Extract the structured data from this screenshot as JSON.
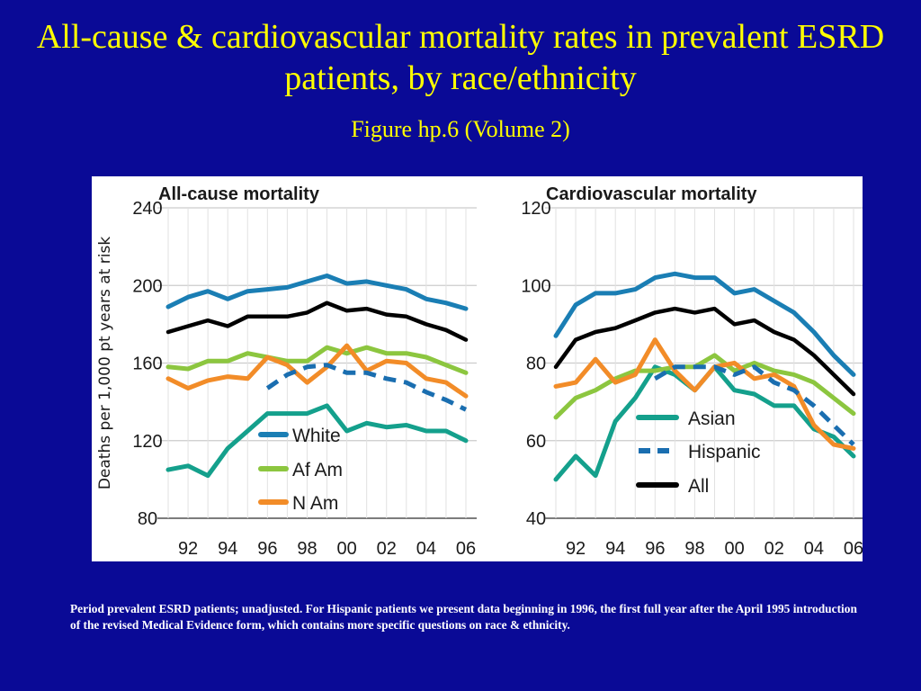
{
  "slide": {
    "title": "All-cause & cardiovascular mortality rates in prevalent ESRD patients, by race/ethnicity",
    "subtitle": "Figure hp.6 (Volume 2)",
    "footnote": "Period prevalent ESRD patients; unadjusted. For Hispanic patients we present data beginning in 1996, the first full year after the April 1995 introduction of the revised Medical Evidence form, which contains more specific questions on race & ethnicity."
  },
  "colors": {
    "background": "#0a0a96",
    "title": "#ffff00",
    "White": "#1a7eb4",
    "Af Am": "#8cc63f",
    "N Am": "#f28c28",
    "Asian": "#14a08c",
    "Hispanic": "#1a6eb0",
    "All": "#000000"
  },
  "chart_data": [
    {
      "type": "line",
      "title": "All-cause mortality",
      "ylabel": "Deaths per 1,000 pt years at risk",
      "xlabel": "",
      "x": [
        1991,
        1992,
        1993,
        1994,
        1995,
        1996,
        1997,
        1998,
        1999,
        2000,
        2001,
        2002,
        2003,
        2004,
        2005,
        2006
      ],
      "xticks": [
        1992,
        1994,
        1996,
        1998,
        2000,
        2002,
        2004,
        2006
      ],
      "xtick_labels": [
        "92",
        "94",
        "96",
        "98",
        "00",
        "02",
        "04",
        "06"
      ],
      "ylim": [
        80,
        240
      ],
      "yticks": [
        80,
        120,
        160,
        200,
        240
      ],
      "grid": true,
      "legend": [
        "White",
        "Af Am",
        "N Am"
      ],
      "legend_position": "bottom-center",
      "series": [
        {
          "name": "White",
          "style": "solid",
          "values": [
            189,
            194,
            197,
            193,
            197,
            198,
            199,
            202,
            205,
            201,
            202,
            200,
            198,
            193,
            191,
            188
          ]
        },
        {
          "name": "Af Am",
          "style": "solid",
          "values": [
            158,
            157,
            161,
            161,
            165,
            163,
            161,
            161,
            168,
            165,
            168,
            165,
            165,
            163,
            159,
            155
          ]
        },
        {
          "name": "N Am",
          "style": "solid",
          "values": [
            152,
            147,
            151,
            153,
            152,
            163,
            159,
            150,
            158,
            169,
            156,
            161,
            160,
            152,
            150,
            143
          ]
        },
        {
          "name": "Asian",
          "style": "solid",
          "values": [
            105,
            107,
            102,
            116,
            125,
            134,
            134,
            134,
            138,
            125,
            129,
            127,
            128,
            125,
            125,
            120
          ]
        },
        {
          "name": "Hispanic",
          "style": "dashed",
          "values": [
            null,
            null,
            null,
            null,
            null,
            147,
            154,
            158,
            159,
            155,
            155,
            152,
            150,
            145,
            141,
            136
          ]
        },
        {
          "name": "All",
          "style": "solid",
          "values": [
            176,
            179,
            182,
            179,
            184,
            184,
            184,
            186,
            191,
            187,
            188,
            185,
            184,
            180,
            177,
            172
          ]
        }
      ]
    },
    {
      "type": "line",
      "title": "Cardiovascular mortality",
      "ylabel": "",
      "xlabel": "",
      "x": [
        1991,
        1992,
        1993,
        1994,
        1995,
        1996,
        1997,
        1998,
        1999,
        2000,
        2001,
        2002,
        2003,
        2004,
        2005,
        2006
      ],
      "xticks": [
        1992,
        1994,
        1996,
        1998,
        2000,
        2002,
        2004,
        2006
      ],
      "xtick_labels": [
        "92",
        "94",
        "96",
        "98",
        "00",
        "02",
        "04",
        "06"
      ],
      "ylim": [
        40,
        120
      ],
      "yticks": [
        40,
        60,
        80,
        100,
        120
      ],
      "grid": true,
      "legend": [
        "Asian",
        "Hispanic",
        "All"
      ],
      "legend_position": "bottom-center",
      "series": [
        {
          "name": "White",
          "style": "solid",
          "values": [
            87,
            95,
            98,
            98,
            99,
            102,
            103,
            102,
            102,
            98,
            99,
            96,
            93,
            88,
            82,
            77
          ]
        },
        {
          "name": "Af Am",
          "style": "solid",
          "values": [
            66,
            71,
            73,
            76,
            78,
            78,
            79,
            79,
            82,
            78,
            80,
            78,
            77,
            75,
            71,
            67
          ]
        },
        {
          "name": "N Am",
          "style": "solid",
          "values": [
            74,
            75,
            81,
            75,
            77,
            86,
            78,
            73,
            79,
            80,
            76,
            77,
            74,
            64,
            59,
            58
          ]
        },
        {
          "name": "Asian",
          "style": "solid",
          "values": [
            50,
            56,
            51,
            65,
            71,
            79,
            77,
            73,
            79,
            73,
            72,
            69,
            69,
            63,
            61,
            56
          ]
        },
        {
          "name": "Hispanic",
          "style": "dashed",
          "values": [
            null,
            null,
            null,
            null,
            null,
            76,
            79,
            79,
            79,
            77,
            79,
            75,
            73,
            69,
            64,
            59
          ]
        },
        {
          "name": "All",
          "style": "solid",
          "values": [
            79,
            86,
            88,
            89,
            91,
            93,
            94,
            93,
            94,
            90,
            91,
            88,
            86,
            82,
            77,
            72
          ]
        }
      ]
    }
  ]
}
